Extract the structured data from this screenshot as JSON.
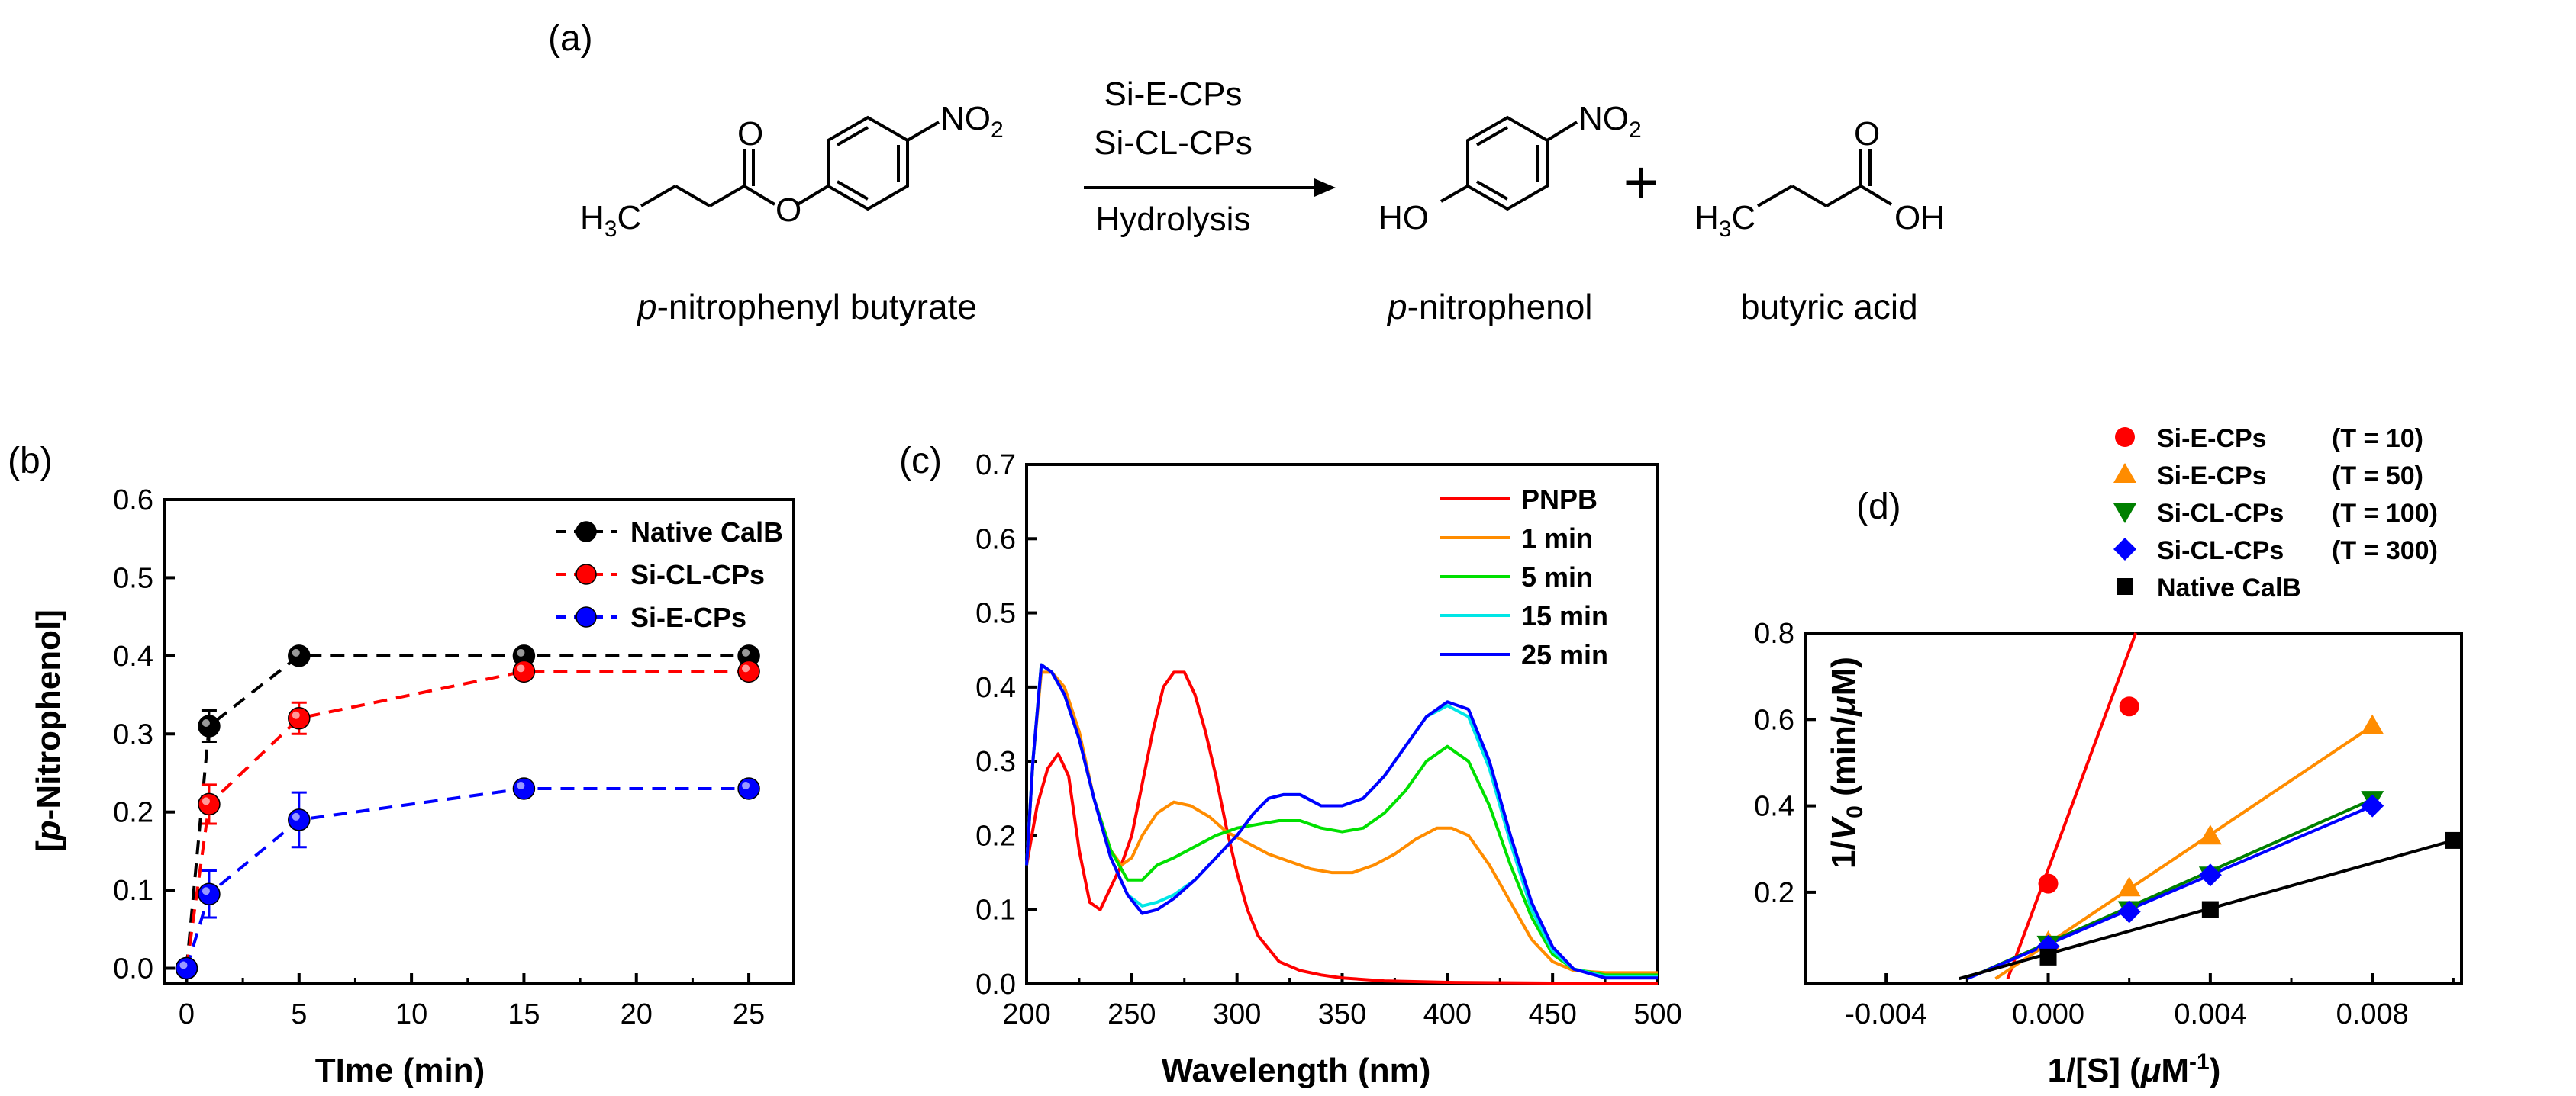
{
  "scheme": {
    "label": "(a)",
    "reactant": {
      "prefix": "p",
      "name": "-nitrophenyl butyrate",
      "h3c": "H",
      "h3c_sub": "3",
      "h3c_c": "C",
      "no2": "NO",
      "no2_sub": "2",
      "o_carbonyl": "O",
      "o_ester": "O"
    },
    "catalysts": [
      "Si-E-CPs",
      "Si-CL-CPs"
    ],
    "condition": "Hydrolysis",
    "product1": {
      "prefix": "p",
      "name": "-nitrophenol",
      "ho": "HO",
      "no2": "NO",
      "no2_sub": "2"
    },
    "plus": "+",
    "product2": {
      "name": "butyric acid",
      "h3c": "H",
      "h3c_sub": "3",
      "h3c_c": "C",
      "o": "O",
      "oh": "OH"
    }
  },
  "chart_data": [
    {
      "panel": "(b)",
      "type": "line",
      "xlabel": "TIme (min)",
      "ylabel_parts": [
        "[",
        "p",
        "-Nitrophenol]"
      ],
      "xlim": [
        -1,
        27
      ],
      "ylim": [
        -0.02,
        0.6
      ],
      "xticks": [
        0,
        5,
        10,
        15,
        20,
        25
      ],
      "yticks": [
        0.0,
        0.1,
        0.2,
        0.3,
        0.4,
        0.5,
        0.6
      ],
      "x": [
        0,
        1,
        5,
        15,
        25
      ],
      "series": [
        {
          "name": "Native CalB",
          "color": "#000000",
          "values": [
            0.0,
            0.31,
            0.4,
            0.4,
            0.4
          ],
          "err": [
            0,
            0.02,
            0.008,
            0.005,
            0.005
          ]
        },
        {
          "name": "Si-CL-CPs",
          "color": "#ff0000",
          "values": [
            0.0,
            0.21,
            0.32,
            0.38,
            0.38
          ],
          "err": [
            0,
            0.025,
            0.02,
            0.008,
            0.005
          ]
        },
        {
          "name": "Si-E-CPs",
          "color": "#0000ff",
          "values": [
            0.0,
            0.095,
            0.19,
            0.23,
            0.23
          ],
          "err": [
            0,
            0.03,
            0.035,
            0.008,
            0.005
          ]
        }
      ],
      "legend": "top-right"
    },
    {
      "panel": "(c)",
      "type": "line",
      "xlabel": "Wavelength (nm)",
      "xlim": [
        200,
        500
      ],
      "ylim": [
        0,
        0.7
      ],
      "xticks": [
        200,
        250,
        300,
        350,
        400,
        450,
        500
      ],
      "yticks": [
        0.0,
        0.1,
        0.2,
        0.3,
        0.4,
        0.5,
        0.6,
        0.7
      ],
      "series": [
        {
          "name": "PNPB",
          "color": "#ff0000",
          "points": [
            [
              200,
              0.16
            ],
            [
              205,
              0.24
            ],
            [
              210,
              0.29
            ],
            [
              215,
              0.31
            ],
            [
              220,
              0.28
            ],
            [
              225,
              0.18
            ],
            [
              230,
              0.11
            ],
            [
              235,
              0.1
            ],
            [
              240,
              0.13
            ],
            [
              245,
              0.16
            ],
            [
              250,
              0.2
            ],
            [
              255,
              0.27
            ],
            [
              260,
              0.34
            ],
            [
              265,
              0.4
            ],
            [
              270,
              0.42
            ],
            [
              275,
              0.42
            ],
            [
              280,
              0.39
            ],
            [
              285,
              0.34
            ],
            [
              290,
              0.28
            ],
            [
              295,
              0.21
            ],
            [
              300,
              0.15
            ],
            [
              305,
              0.1
            ],
            [
              310,
              0.065
            ],
            [
              320,
              0.03
            ],
            [
              330,
              0.018
            ],
            [
              340,
              0.012
            ],
            [
              350,
              0.008
            ],
            [
              370,
              0.004
            ],
            [
              400,
              0.002
            ],
            [
              450,
              0.001
            ],
            [
              500,
              0.0
            ]
          ]
        },
        {
          "name": "1 min",
          "color": "#ff8c00",
          "points": [
            [
              200,
              0.16
            ],
            [
              203,
              0.3
            ],
            [
              207,
              0.42
            ],
            [
              212,
              0.42
            ],
            [
              218,
              0.4
            ],
            [
              225,
              0.34
            ],
            [
              232,
              0.25
            ],
            [
              240,
              0.18
            ],
            [
              245,
              0.16
            ],
            [
              250,
              0.17
            ],
            [
              255,
              0.2
            ],
            [
              262,
              0.23
            ],
            [
              270,
              0.245
            ],
            [
              278,
              0.24
            ],
            [
              287,
              0.225
            ],
            [
              295,
              0.205
            ],
            [
              305,
              0.19
            ],
            [
              315,
              0.175
            ],
            [
              325,
              0.165
            ],
            [
              335,
              0.155
            ],
            [
              345,
              0.15
            ],
            [
              355,
              0.15
            ],
            [
              365,
              0.16
            ],
            [
              375,
              0.175
            ],
            [
              385,
              0.195
            ],
            [
              395,
              0.21
            ],
            [
              402,
              0.21
            ],
            [
              410,
              0.2
            ],
            [
              420,
              0.16
            ],
            [
              430,
              0.11
            ],
            [
              440,
              0.06
            ],
            [
              450,
              0.03
            ],
            [
              460,
              0.018
            ],
            [
              475,
              0.015
            ],
            [
              500,
              0.015
            ]
          ]
        },
        {
          "name": "5 min",
          "color": "#00e000",
          "points": [
            [
              200,
              0.16
            ],
            [
              203,
              0.3
            ],
            [
              207,
              0.43
            ],
            [
              212,
              0.42
            ],
            [
              218,
              0.39
            ],
            [
              225,
              0.33
            ],
            [
              232,
              0.25
            ],
            [
              240,
              0.18
            ],
            [
              248,
              0.14
            ],
            [
              255,
              0.14
            ],
            [
              262,
              0.16
            ],
            [
              270,
              0.17
            ],
            [
              280,
              0.185
            ],
            [
              290,
              0.2
            ],
            [
              300,
              0.21
            ],
            [
              310,
              0.215
            ],
            [
              320,
              0.22
            ],
            [
              330,
              0.22
            ],
            [
              340,
              0.21
            ],
            [
              350,
              0.205
            ],
            [
              360,
              0.21
            ],
            [
              370,
              0.23
            ],
            [
              380,
              0.26
            ],
            [
              390,
              0.3
            ],
            [
              400,
              0.32
            ],
            [
              410,
              0.3
            ],
            [
              420,
              0.24
            ],
            [
              430,
              0.16
            ],
            [
              440,
              0.09
            ],
            [
              450,
              0.04
            ],
            [
              460,
              0.02
            ],
            [
              475,
              0.012
            ],
            [
              500,
              0.012
            ]
          ]
        },
        {
          "name": "15 min",
          "color": "#00e6e6",
          "points": [
            [
              200,
              0.16
            ],
            [
              203,
              0.3
            ],
            [
              207,
              0.43
            ],
            [
              212,
              0.42
            ],
            [
              218,
              0.39
            ],
            [
              225,
              0.33
            ],
            [
              232,
              0.25
            ],
            [
              240,
              0.17
            ],
            [
              248,
              0.12
            ],
            [
              255,
              0.105
            ],
            [
              262,
              0.11
            ],
            [
              270,
              0.12
            ],
            [
              280,
              0.14
            ],
            [
              290,
              0.17
            ],
            [
              300,
              0.2
            ],
            [
              308,
              0.23
            ],
            [
              315,
              0.25
            ],
            [
              322,
              0.255
            ],
            [
              330,
              0.255
            ],
            [
              340,
              0.24
            ],
            [
              350,
              0.24
            ],
            [
              360,
              0.25
            ],
            [
              370,
              0.28
            ],
            [
              380,
              0.32
            ],
            [
              390,
              0.36
            ],
            [
              400,
              0.375
            ],
            [
              410,
              0.36
            ],
            [
              420,
              0.29
            ],
            [
              430,
              0.19
            ],
            [
              440,
              0.1
            ],
            [
              450,
              0.045
            ],
            [
              460,
              0.02
            ],
            [
              475,
              0.01
            ],
            [
              500,
              0.01
            ]
          ]
        },
        {
          "name": "25 min",
          "color": "#0000ff",
          "points": [
            [
              200,
              0.16
            ],
            [
              203,
              0.3
            ],
            [
              207,
              0.43
            ],
            [
              212,
              0.42
            ],
            [
              218,
              0.39
            ],
            [
              225,
              0.33
            ],
            [
              232,
              0.25
            ],
            [
              240,
              0.17
            ],
            [
              248,
              0.12
            ],
            [
              255,
              0.095
            ],
            [
              262,
              0.1
            ],
            [
              270,
              0.115
            ],
            [
              280,
              0.14
            ],
            [
              290,
              0.17
            ],
            [
              300,
              0.2
            ],
            [
              308,
              0.23
            ],
            [
              315,
              0.25
            ],
            [
              322,
              0.255
            ],
            [
              330,
              0.255
            ],
            [
              340,
              0.24
            ],
            [
              350,
              0.24
            ],
            [
              360,
              0.25
            ],
            [
              370,
              0.28
            ],
            [
              380,
              0.32
            ],
            [
              390,
              0.36
            ],
            [
              400,
              0.38
            ],
            [
              410,
              0.37
            ],
            [
              420,
              0.3
            ],
            [
              430,
              0.2
            ],
            [
              440,
              0.11
            ],
            [
              450,
              0.05
            ],
            [
              460,
              0.02
            ],
            [
              475,
              0.008
            ],
            [
              500,
              0.008
            ]
          ]
        }
      ],
      "legend": "top-right"
    },
    {
      "panel": "(d)",
      "type": "scatter",
      "xlabel_parts": [
        "1/[S] (",
        "μ",
        "M",
        "-1",
        ")"
      ],
      "ylabel_parts": [
        "1/",
        "V",
        "0",
        " (min/",
        "μ",
        "M)"
      ],
      "xlim": [
        -0.006,
        0.0102
      ],
      "ylim": [
        -0.012,
        0.8
      ],
      "xticks": [
        -0.004,
        0.0,
        0.004,
        0.008
      ],
      "xticklabels": [
        "-0.004",
        "0.000",
        "0.004",
        "0.008"
      ],
      "yticks": [
        0.2,
        0.4,
        0.6,
        0.8
      ],
      "series": [
        {
          "name": "Si-E-CPs",
          "label": "(T = 10)",
          "color": "#ff0000",
          "marker": "circle",
          "x": [
            0.0,
            0.002
          ],
          "y": [
            0.22,
            0.63
          ],
          "line": [
            [
              -0.001,
              0.0
            ],
            [
              0.00216,
              0.8
            ]
          ]
        },
        {
          "name": "Si-E-CPs",
          "label": "(T = 50)",
          "color": "#ff8c00",
          "marker": "triangle-up",
          "x": [
            0.0,
            0.002,
            0.004,
            0.008
          ],
          "y": [
            0.085,
            0.21,
            0.33,
            0.585
          ],
          "line": [
            [
              -0.0013,
              0.0
            ],
            [
              0.008,
              0.585
            ]
          ]
        },
        {
          "name": "Si-CL-CPs",
          "label": "(T = 100)",
          "color": "#008000",
          "marker": "triangle-down",
          "x": [
            0.0,
            0.002,
            0.004,
            0.008
          ],
          "y": [
            0.08,
            0.16,
            0.24,
            0.415
          ],
          "line": [
            [
              -0.002,
              0.0
            ],
            [
              0.008,
              0.415
            ]
          ]
        },
        {
          "name": "Si-CL-CPs",
          "label": "(T = 300)",
          "color": "#0000ff",
          "marker": "diamond",
          "x": [
            0.0,
            0.002,
            0.004,
            0.008
          ],
          "y": [
            0.075,
            0.155,
            0.24,
            0.4
          ],
          "line": [
            [
              -0.002,
              0.0
            ],
            [
              0.008,
              0.4
            ]
          ]
        },
        {
          "name": "Native CalB",
          "label": "",
          "color": "#000000",
          "marker": "square",
          "x": [
            0.0,
            0.004,
            0.01
          ],
          "y": [
            0.05,
            0.16,
            0.32
          ],
          "line": [
            [
              -0.0022,
              0.0
            ],
            [
              0.01,
              0.32
            ]
          ]
        }
      ],
      "legend": "top-right"
    }
  ]
}
